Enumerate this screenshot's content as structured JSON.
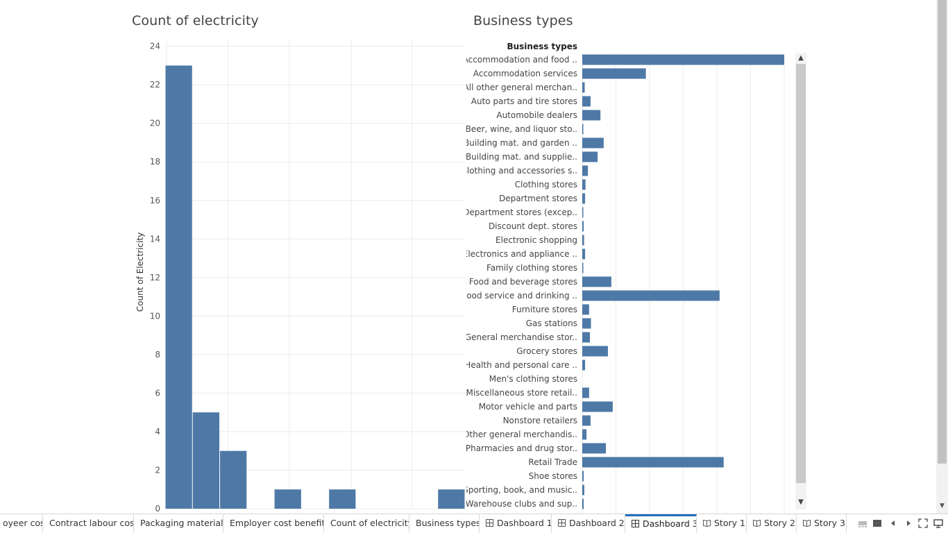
{
  "left_sheet": {
    "title": "Count of electricity",
    "chart_data": {
      "type": "bar",
      "title": "Count of electricity",
      "ylabel": "Count of Electricity",
      "xlabel": "",
      "ylim": [
        0,
        24.6
      ],
      "y_ticks": [
        "0",
        "2",
        "4",
        "6",
        "8",
        "10",
        "12",
        "14",
        "16",
        "18",
        "20",
        "22",
        "24"
      ],
      "grid": true,
      "bins": [
        {
          "value": 23
        },
        {
          "value": 5
        },
        {
          "value": 3
        },
        {
          "value": 0
        },
        {
          "value": 1
        },
        {
          "value": 0
        },
        {
          "value": 1
        },
        {
          "value": 0
        },
        {
          "value": 0
        },
        {
          "value": 0
        },
        {
          "value": 1
        }
      ]
    }
  },
  "right_sheet": {
    "title": "Business types",
    "chart_data": {
      "type": "bar",
      "orientation": "horizontal",
      "title": "Business types",
      "row_header": "Business types",
      "grid": true,
      "xlim": [
        0,
        100
      ],
      "categories": [
        "Accommodation and food ..",
        "Accommodation services",
        "All other general merchan..",
        "Auto parts and tire stores",
        "Automobile dealers",
        "Beer, wine, and liquor sto..",
        "Building mat. and garden ..",
        "Building mat. and supplie..",
        "Clothing and accessories s..",
        "Clothing stores",
        "Department stores",
        "Department stores (excep..",
        "Discount dept. stores",
        "Electronic shopping",
        "Electronics and appliance ..",
        "Family clothing stores",
        "Food and beverage stores",
        "Food service and drinking ..",
        "Furniture stores",
        "Gas stations",
        "General merchandise stor..",
        "Grocery stores",
        "Health and personal care ..",
        "Men's clothing stores",
        "Miscellaneous store retail..",
        "Motor vehicle and parts",
        "Nonstore retailers",
        "Other general merchandis..",
        "Pharmacies and drug stor..",
        "Retail Trade",
        "Shoe stores",
        "Sporting, book, and music..",
        "Warehouse clubs and sup.."
      ],
      "values": [
        100,
        31.5,
        1.2,
        4.1,
        9.0,
        0.4,
        10.6,
        7.6,
        2.8,
        1.6,
        1.4,
        0.4,
        0.7,
        0.9,
        1.4,
        0.4,
        14.4,
        68.0,
        3.4,
        4.3,
        3.8,
        12.7,
        1.4,
        0.0,
        3.4,
        15.1,
        4.1,
        2.1,
        11.7,
        70.0,
        0.7,
        1.0,
        0.7
      ]
    }
  },
  "colors": {
    "bar": "#4e79a7",
    "gridline": "#ebebeb",
    "axis_text": "#666666",
    "active_tab": "#1f6fbf"
  },
  "tabs": [
    {
      "label": "oyeer cost",
      "icon": "",
      "active": false
    },
    {
      "label": "Contract labour cost",
      "icon": "",
      "active": false
    },
    {
      "label": "Packaging materials",
      "icon": "",
      "active": false
    },
    {
      "label": "Employer cost benefits",
      "icon": "",
      "active": false
    },
    {
      "label": "Count of electricity",
      "icon": "",
      "active": false
    },
    {
      "label": "Business types",
      "icon": "",
      "active": false
    },
    {
      "label": "Dashboard 1",
      "icon": "dashboard-icon",
      "active": false
    },
    {
      "label": "Dashboard 2",
      "icon": "dashboard-icon",
      "active": false
    },
    {
      "label": "Dashboard 3",
      "icon": "dashboard-icon",
      "active": true
    },
    {
      "label": "Story 1",
      "icon": "story-icon",
      "active": false
    },
    {
      "label": "Story 2",
      "icon": "story-icon",
      "active": false
    },
    {
      "label": "Story 3",
      "icon": "story-icon",
      "active": false
    }
  ],
  "tab_controls": [
    "show-filmstrip-icon",
    "show-tabs-icon",
    "previous-sheet-icon",
    "next-sheet-icon",
    "fullscreen-icon",
    "present-icon"
  ]
}
